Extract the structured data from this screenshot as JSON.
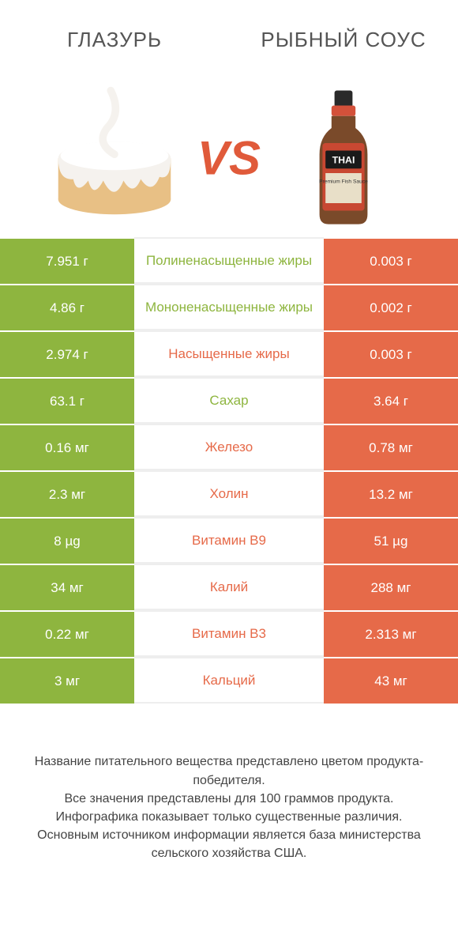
{
  "colors": {
    "green": "#8eb53f",
    "orange": "#e66a49",
    "vs": "#e05a3a",
    "mid_green_text": "#8eb53f",
    "mid_orange_text": "#e66a49"
  },
  "products": {
    "left": {
      "title": "ГЛАЗУРЬ"
    },
    "right": {
      "title": "РЫБНЫЙ СОУС"
    }
  },
  "vs_label": "VS",
  "rows": [
    {
      "left": "7.951 г",
      "label": "Полиненасыщенные жиры",
      "right": "0.003 г",
      "winner": "left"
    },
    {
      "left": "4.86 г",
      "label": "Мононенасыщенные жиры",
      "right": "0.002 г",
      "winner": "left"
    },
    {
      "left": "2.974 г",
      "label": "Насыщенные жиры",
      "right": "0.003 г",
      "winner": "right"
    },
    {
      "left": "63.1 г",
      "label": "Сахар",
      "right": "3.64 г",
      "winner": "left"
    },
    {
      "left": "0.16 мг",
      "label": "Железо",
      "right": "0.78 мг",
      "winner": "right"
    },
    {
      "left": "2.3 мг",
      "label": "Холин",
      "right": "13.2 мг",
      "winner": "right"
    },
    {
      "left": "8 µg",
      "label": "Витамин B9",
      "right": "51 µg",
      "winner": "right"
    },
    {
      "left": "34 мг",
      "label": "Калий",
      "right": "288 мг",
      "winner": "right"
    },
    {
      "left": "0.22 мг",
      "label": "Витамин B3",
      "right": "2.313 мг",
      "winner": "right"
    },
    {
      "left": "3 мг",
      "label": "Кальций",
      "right": "43 мг",
      "winner": "right"
    }
  ],
  "footer_lines": [
    "Название питательного вещества представлено цветом продукта-победителя.",
    "Все значения представлены для 100 граммов продукта.",
    "Инфографика показывает только существенные различия.",
    "Основным источником информации является база министерства сельского хозяйства США."
  ]
}
